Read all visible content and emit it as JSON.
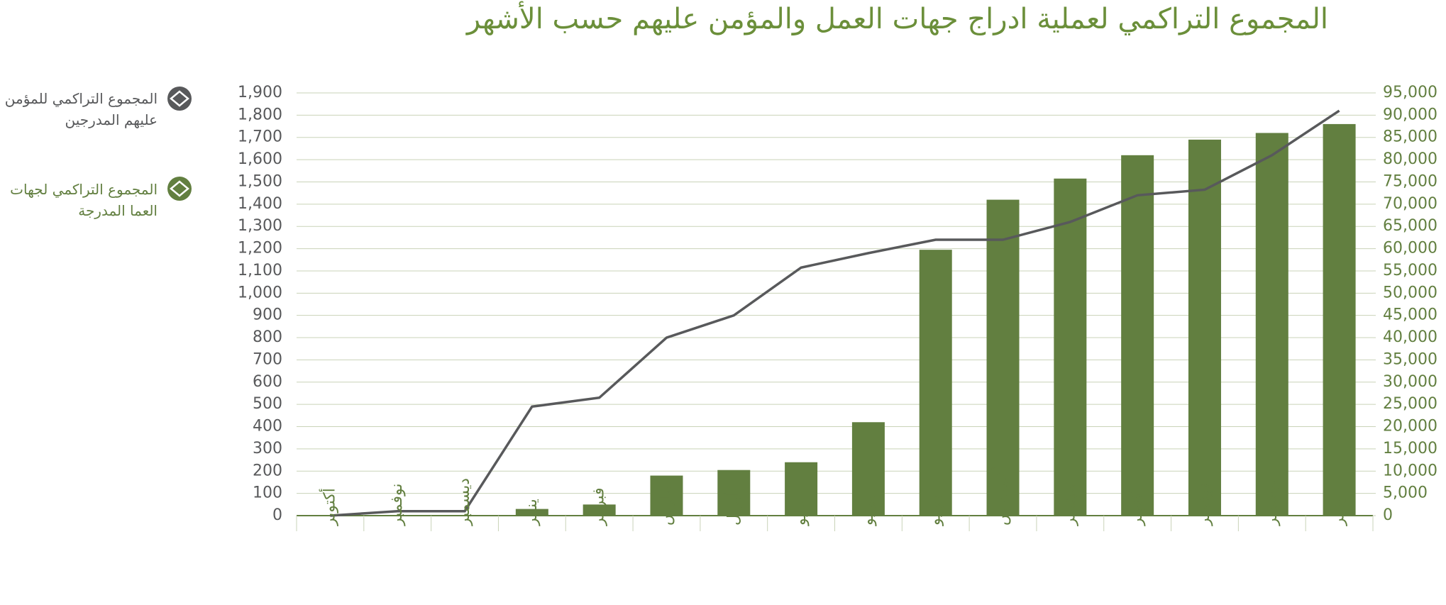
{
  "chart_data": {
    "type": "bar_line",
    "title": "المجموع التراكمي لعملية ادراج جهات العمل والمؤمن عليهم حسب الأشهر",
    "categories": [
      "أكتوبر",
      "نوفمبر",
      "ديسمبر",
      "يناير",
      "فبراير",
      "مارس",
      "أبريل",
      "مايو",
      "يونيو",
      "يوليو",
      "أغسطس",
      "سبتمبر",
      "أكتوبر",
      "نوفمبر",
      "ديسمبر",
      "يناير"
    ],
    "series": [
      {
        "name": "المجموع التراكمي للمؤمن عليهم المدرجين",
        "type": "line",
        "color": "#58595b",
        "axis": "y",
        "values": [
          0,
          20,
          20,
          490,
          530,
          800,
          900,
          1115,
          1180,
          1240,
          1240,
          1320,
          1440,
          1465,
          1620,
          1820
        ]
      },
      {
        "name": "المجموع التراكمي لجهات العما المدرجة",
        "type": "bar",
        "color": "#627f40",
        "axis": "y2",
        "values": [
          0,
          0,
          0,
          1500,
          2500,
          9000,
          10250,
          12000,
          21000,
          59750,
          71000,
          75750,
          81000,
          84500,
          86000,
          88000
        ]
      }
    ],
    "ylim": [
      0,
      1900
    ],
    "yticks": [
      0,
      100,
      200,
      300,
      400,
      500,
      600,
      700,
      800,
      900,
      {
        "value": 1000,
        "label": "1,000"
      },
      {
        "value": 1100,
        "label": "1,100"
      },
      {
        "value": 1200,
        "label": "1,200"
      },
      {
        "value": 1300,
        "label": "1,300"
      },
      {
        "value": 1400,
        "label": "1,400"
      },
      {
        "value": 1500,
        "label": "1,500"
      },
      {
        "value": 1600,
        "label": "1,600"
      },
      {
        "value": 1700,
        "label": "1,700"
      },
      {
        "value": 1800,
        "label": "1,800"
      },
      {
        "value": 1900,
        "label": "1,900"
      }
    ],
    "y2lim": [
      0,
      95000
    ],
    "y2ticks": [
      0,
      {
        "value": 5000,
        "label": "5,000"
      },
      {
        "value": 10000,
        "label": "10,000"
      },
      {
        "value": 15000,
        "label": "15,000"
      },
      {
        "value": 20000,
        "label": "20,000"
      },
      {
        "value": 25000,
        "label": "25,000"
      },
      {
        "value": 30000,
        "label": "30,000"
      },
      {
        "value": 35000,
        "label": "35,000"
      },
      {
        "value": 40000,
        "label": "40,000"
      },
      {
        "value": 45000,
        "label": "45,000"
      },
      {
        "value": 50000,
        "label": "50,000"
      },
      {
        "value": 55000,
        "label": "55,000"
      },
      {
        "value": 60000,
        "label": "60,000"
      },
      {
        "value": 65000,
        "label": "65,000"
      },
      {
        "value": 70000,
        "label": "70,000"
      },
      {
        "value": 75000,
        "label": "75,000"
      },
      {
        "value": 80000,
        "label": "80,000"
      },
      {
        "value": 85000,
        "label": "85,000"
      },
      {
        "value": 90000,
        "label": "90,000"
      },
      {
        "value": 95000,
        "label": "95,000"
      }
    ],
    "grid": true
  }
}
